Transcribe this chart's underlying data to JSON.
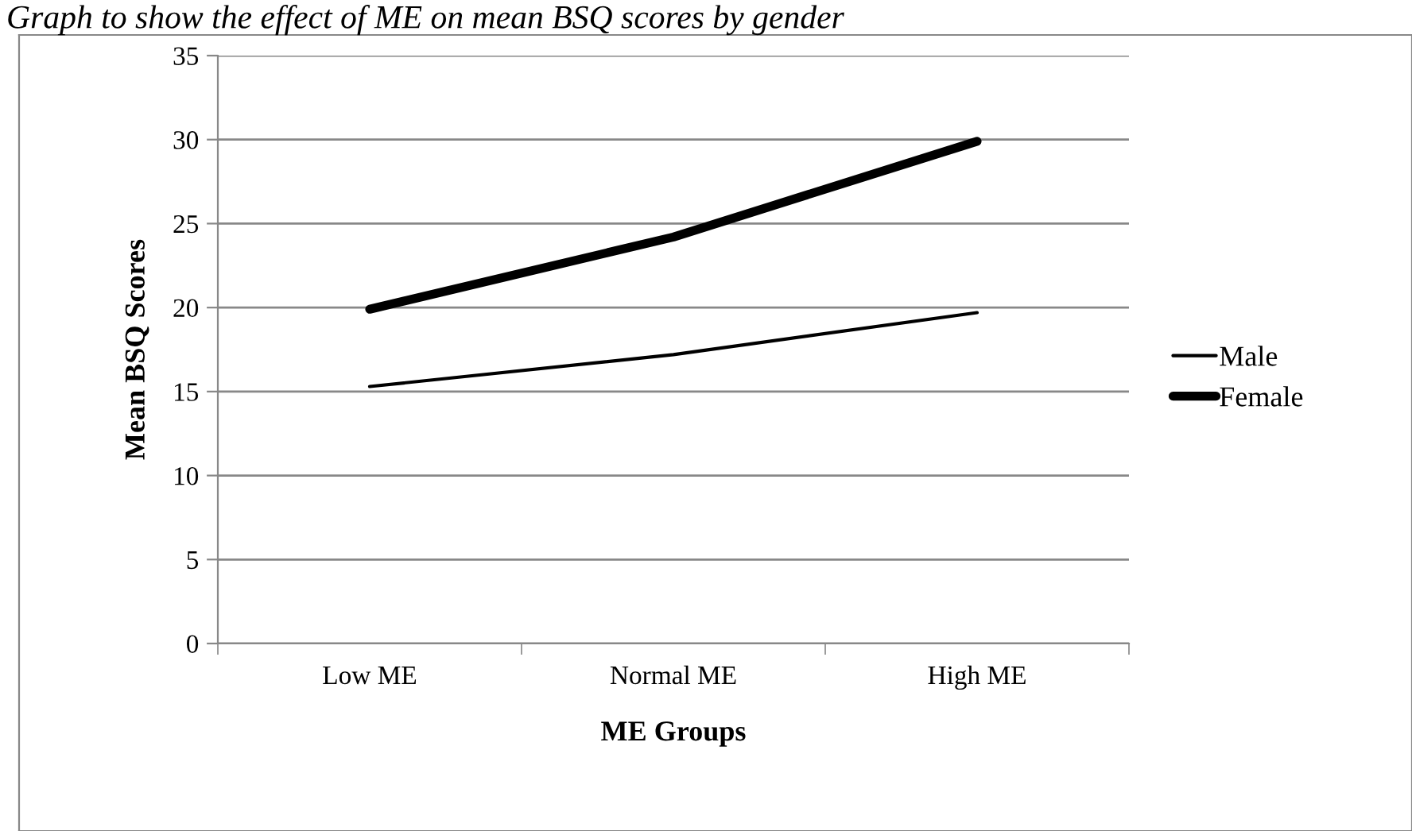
{
  "chart_data": {
    "type": "line",
    "title": "Graph to show the effect of ME on mean BSQ scores by gender",
    "xlabel": "ME Groups",
    "ylabel": "Mean BSQ Scores",
    "categories": [
      "Low ME",
      "Normal ME",
      "High ME"
    ],
    "series": [
      {
        "name": "Male",
        "color": "#000000",
        "values": [
          15.3,
          17.2,
          19.7
        ]
      },
      {
        "name": "Female",
        "color": "#000000",
        "values": [
          19.9,
          24.2,
          29.9
        ]
      }
    ],
    "ylim": [
      0,
      35
    ],
    "yticks": [
      0,
      5,
      10,
      15,
      20,
      25,
      30,
      35
    ],
    "grid": "y",
    "legend": "right",
    "marker": "none",
    "line_style": "solid"
  }
}
